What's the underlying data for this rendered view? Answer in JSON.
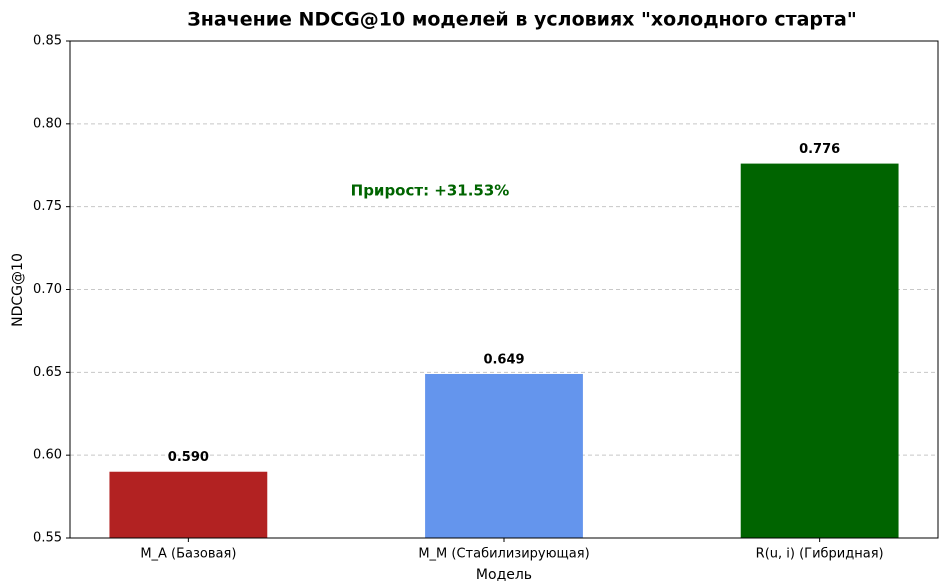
{
  "chart_data": {
    "type": "bar",
    "title": "Значение NDCG@10 моделей в условиях \"холодного старта\"",
    "xlabel": "Модель",
    "ylabel": "NDCG@10",
    "categories": [
      "M_A (Базовая)",
      "M_M (Стабилизирующая)",
      "R(u, i) (Гибридная)"
    ],
    "values": [
      0.59,
      0.649,
      0.776
    ],
    "value_labels": [
      "0.590",
      "0.649",
      "0.776"
    ],
    "colors": [
      "#b22222",
      "#6495ed",
      "#006400"
    ],
    "annotation": "Прирост: +31.53%",
    "ylim": [
      0.55,
      0.85
    ],
    "yticks": [
      0.55,
      {
        "value": 0.6,
        "label": "0.60"
      },
      0.65,
      {
        "value": 0.7,
        "label": "0.70"
      },
      0.75,
      {
        "value": 0.8,
        "label": "0.80"
      },
      0.85
    ],
    "grid": true
  }
}
